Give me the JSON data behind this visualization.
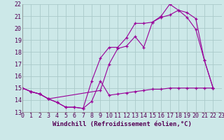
{
  "xlabel": "Windchill (Refroidissement éolien,°C)",
  "background_color": "#cce8e8",
  "grid_color": "#aacaca",
  "line_color": "#990099",
  "xlim": [
    0,
    23
  ],
  "ylim": [
    13,
    22
  ],
  "xticks": [
    0,
    1,
    2,
    3,
    4,
    5,
    6,
    7,
    8,
    9,
    10,
    11,
    12,
    13,
    14,
    15,
    16,
    17,
    18,
    19,
    20,
    21,
    22,
    23
  ],
  "yticks": [
    13,
    14,
    15,
    16,
    17,
    18,
    19,
    20,
    21,
    22
  ],
  "series1_x": [
    0,
    1,
    2,
    3,
    4,
    5,
    6,
    7,
    8,
    9,
    10,
    11,
    12,
    13,
    14,
    15,
    16,
    17,
    18,
    19,
    20,
    21,
    22
  ],
  "series1_y": [
    15.0,
    14.7,
    14.5,
    14.1,
    13.8,
    13.4,
    13.4,
    13.3,
    13.9,
    15.6,
    14.4,
    14.5,
    14.6,
    14.7,
    14.8,
    14.9,
    14.9,
    15.0,
    15.0,
    15.0,
    15.0,
    15.0,
    15.0
  ],
  "series2_x": [
    0,
    1,
    2,
    3,
    4,
    5,
    6,
    7,
    8,
    9,
    10,
    11,
    12,
    13,
    14,
    15,
    16,
    17,
    18,
    19,
    20,
    21,
    22
  ],
  "series2_y": [
    15.0,
    14.7,
    14.5,
    14.1,
    13.8,
    13.4,
    13.4,
    13.3,
    15.6,
    17.5,
    18.4,
    18.4,
    19.2,
    20.4,
    20.4,
    20.5,
    21.0,
    22.0,
    21.5,
    20.9,
    19.9,
    17.3,
    15.0
  ],
  "series3_x": [
    0,
    1,
    2,
    3,
    9,
    10,
    11,
    12,
    13,
    14,
    15,
    16,
    17,
    18,
    19,
    20,
    21,
    22
  ],
  "series3_y": [
    15.0,
    14.7,
    14.5,
    14.1,
    14.8,
    17.0,
    18.3,
    18.5,
    19.3,
    18.4,
    20.5,
    20.9,
    21.1,
    21.5,
    21.3,
    20.8,
    17.3,
    15.0
  ],
  "fontsize_tick": 6,
  "fontsize_xlabel": 6.5
}
